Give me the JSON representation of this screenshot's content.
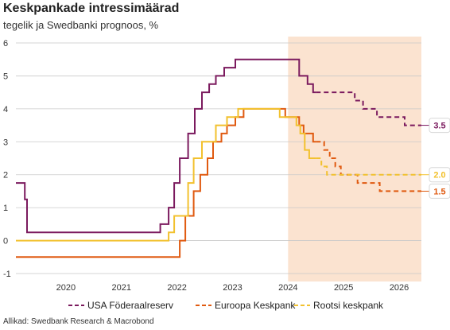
{
  "header": {
    "title": "Keskpankade intressimäärad",
    "subtitle": "tegelik ja Swedbanki prognoos, %"
  },
  "source": "Allikad: Swedbank Research & Macrobond",
  "chart_data": {
    "type": "line",
    "title": "Keskpankade intressimäärad",
    "subtitle": "tegelik ja Swedbanki prognoos, %",
    "xlabel": "",
    "ylabel": "",
    "xlim": [
      2019.6,
      2026.9
    ],
    "ylim": [
      -1,
      6
    ],
    "yticks": [
      -1,
      0,
      1,
      2,
      3,
      4,
      5,
      6
    ],
    "xtick_labels": [
      "2020",
      "2021",
      "2022",
      "2023",
      "2024",
      "2025",
      "2026"
    ],
    "grid": true,
    "forecast_region": [
      2024.5,
      2026.9
    ],
    "legend_position": "bottom",
    "series": [
      {
        "name": "USA Föderaalreserv",
        "color": "#7b1a5e",
        "end_label": "3.5",
        "actual": [
          [
            2019.6,
            1.75
          ],
          [
            2019.76,
            1.75
          ],
          [
            2019.76,
            1.25
          ],
          [
            2019.8,
            1.25
          ],
          [
            2019.8,
            0.25
          ],
          [
            2022.2,
            0.25
          ],
          [
            2022.2,
            0.5
          ],
          [
            2022.35,
            0.5
          ],
          [
            2022.35,
            1.0
          ],
          [
            2022.45,
            1.0
          ],
          [
            2022.45,
            1.75
          ],
          [
            2022.55,
            1.75
          ],
          [
            2022.55,
            2.5
          ],
          [
            2022.7,
            2.5
          ],
          [
            2022.7,
            3.25
          ],
          [
            2022.82,
            3.25
          ],
          [
            2022.82,
            4.0
          ],
          [
            2022.95,
            4.0
          ],
          [
            2022.95,
            4.5
          ],
          [
            2023.08,
            4.5
          ],
          [
            2023.08,
            4.75
          ],
          [
            2023.2,
            4.75
          ],
          [
            2023.2,
            5.0
          ],
          [
            2023.35,
            5.0
          ],
          [
            2023.35,
            5.25
          ],
          [
            2023.55,
            5.25
          ],
          [
            2023.55,
            5.5
          ],
          [
            2024.7,
            5.5
          ],
          [
            2024.7,
            5.0
          ],
          [
            2024.85,
            5.0
          ],
          [
            2024.85,
            4.75
          ],
          [
            2024.95,
            4.75
          ],
          [
            2024.95,
            4.5
          ],
          [
            2025.0,
            4.5
          ]
        ],
        "forecast": [
          [
            2025.0,
            4.5
          ],
          [
            2025.7,
            4.5
          ],
          [
            2025.7,
            4.25
          ],
          [
            2025.85,
            4.25
          ],
          [
            2025.85,
            4.0
          ],
          [
            2026.1,
            4.0
          ],
          [
            2026.1,
            3.75
          ],
          [
            2026.6,
            3.75
          ],
          [
            2026.6,
            3.5
          ],
          [
            2026.9,
            3.5
          ]
        ]
      },
      {
        "name": "Euroopa Keskpank",
        "color": "#e05a10",
        "end_label": "1.5",
        "actual": [
          [
            2019.6,
            -0.5
          ],
          [
            2022.55,
            -0.5
          ],
          [
            2022.55,
            0.0
          ],
          [
            2022.65,
            0.0
          ],
          [
            2022.65,
            0.75
          ],
          [
            2022.8,
            0.75
          ],
          [
            2022.8,
            1.5
          ],
          [
            2022.92,
            1.5
          ],
          [
            2022.92,
            2.0
          ],
          [
            2023.05,
            2.0
          ],
          [
            2023.05,
            2.5
          ],
          [
            2023.15,
            2.5
          ],
          [
            2023.15,
            3.0
          ],
          [
            2023.3,
            3.0
          ],
          [
            2023.3,
            3.25
          ],
          [
            2023.4,
            3.25
          ],
          [
            2023.4,
            3.5
          ],
          [
            2023.55,
            3.5
          ],
          [
            2023.55,
            3.75
          ],
          [
            2023.7,
            3.75
          ],
          [
            2023.7,
            4.0
          ],
          [
            2024.45,
            4.0
          ],
          [
            2024.45,
            3.75
          ],
          [
            2024.7,
            3.75
          ],
          [
            2024.7,
            3.5
          ],
          [
            2024.78,
            3.5
          ],
          [
            2024.78,
            3.25
          ],
          [
            2024.95,
            3.25
          ],
          [
            2024.95,
            3.0
          ],
          [
            2025.0,
            3.0
          ]
        ],
        "forecast": [
          [
            2025.0,
            3.0
          ],
          [
            2025.15,
            3.0
          ],
          [
            2025.15,
            2.75
          ],
          [
            2025.25,
            2.75
          ],
          [
            2025.25,
            2.5
          ],
          [
            2025.35,
            2.5
          ],
          [
            2025.35,
            2.25
          ],
          [
            2025.45,
            2.25
          ],
          [
            2025.45,
            2.0
          ],
          [
            2025.75,
            2.0
          ],
          [
            2025.75,
            1.75
          ],
          [
            2026.15,
            1.75
          ],
          [
            2026.15,
            1.5
          ],
          [
            2026.9,
            1.5
          ]
        ]
      },
      {
        "name": "Rootsi keskpank",
        "color": "#f2c12e",
        "end_label": "2.0",
        "actual": [
          [
            2019.6,
            0.0
          ],
          [
            2022.35,
            0.0
          ],
          [
            2022.35,
            0.25
          ],
          [
            2022.45,
            0.25
          ],
          [
            2022.45,
            0.75
          ],
          [
            2022.7,
            0.75
          ],
          [
            2022.7,
            1.75
          ],
          [
            2022.8,
            1.75
          ],
          [
            2022.8,
            2.5
          ],
          [
            2022.95,
            2.5
          ],
          [
            2022.95,
            3.0
          ],
          [
            2023.2,
            3.0
          ],
          [
            2023.2,
            3.5
          ],
          [
            2023.4,
            3.5
          ],
          [
            2023.4,
            3.75
          ],
          [
            2023.6,
            3.75
          ],
          [
            2023.6,
            4.0
          ],
          [
            2024.35,
            4.0
          ],
          [
            2024.35,
            3.75
          ],
          [
            2024.65,
            3.75
          ],
          [
            2024.65,
            3.5
          ],
          [
            2024.72,
            3.5
          ],
          [
            2024.72,
            3.25
          ],
          [
            2024.8,
            3.25
          ],
          [
            2024.8,
            2.75
          ],
          [
            2024.88,
            2.75
          ],
          [
            2024.88,
            2.5
          ],
          [
            2025.0,
            2.5
          ]
        ],
        "forecast": [
          [
            2025.0,
            2.5
          ],
          [
            2025.1,
            2.5
          ],
          [
            2025.1,
            2.25
          ],
          [
            2025.2,
            2.25
          ],
          [
            2025.2,
            2.0
          ],
          [
            2026.9,
            2.0
          ]
        ]
      }
    ]
  }
}
